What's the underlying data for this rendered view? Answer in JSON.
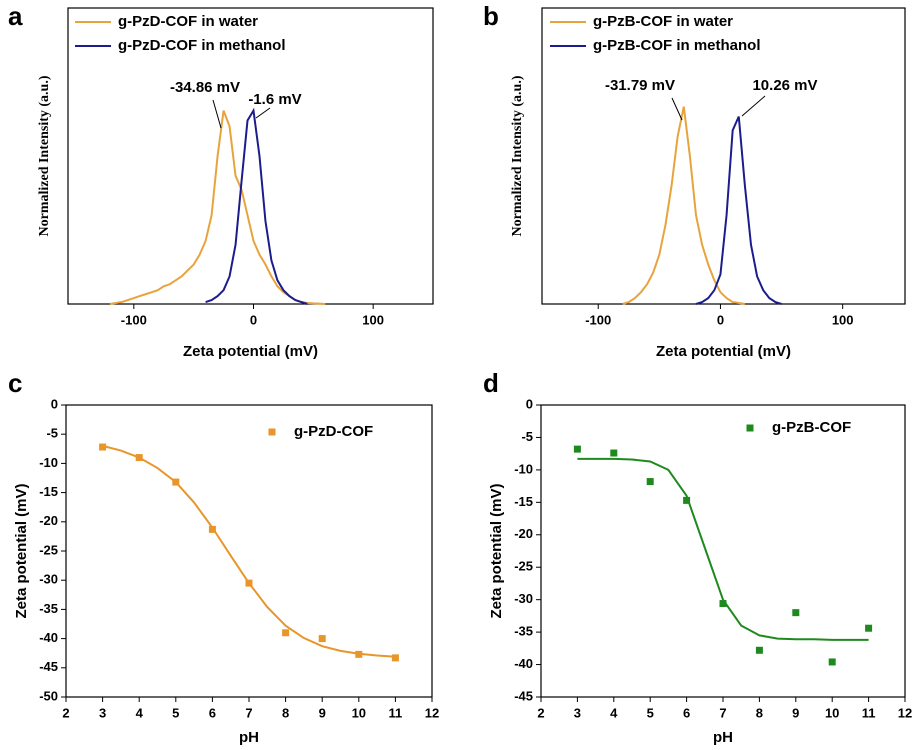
{
  "chart_data": [
    {
      "panel": "a",
      "type": "line",
      "xlabel": "Zeta potential (mV)",
      "ylabel": "Normalized Intensity (a.u.)",
      "xlim": [
        -155,
        150
      ],
      "ylim": [
        0,
        1.5
      ],
      "xticks": [
        -100,
        0,
        100
      ],
      "legend": "upper left",
      "annotations": [
        "-34.86 mV",
        "-1.6 mV"
      ],
      "series": [
        {
          "name": "g-PzD-COF in water",
          "color": "#e8a33c",
          "x": [
            -120,
            -115,
            -110,
            -105,
            -100,
            -95,
            -90,
            -85,
            -80,
            -75,
            -70,
            -65,
            -60,
            -55,
            -50,
            -45,
            -40,
            -35,
            -30,
            -25,
            -20,
            -15,
            -10,
            -5,
            0,
            5,
            10,
            15,
            20,
            25,
            30,
            35,
            40,
            45,
            50,
            55,
            60
          ],
          "values": [
            0,
            0.005,
            0.01,
            0.02,
            0.03,
            0.04,
            0.05,
            0.06,
            0.07,
            0.09,
            0.1,
            0.12,
            0.14,
            0.17,
            0.2,
            0.25,
            0.32,
            0.45,
            0.75,
            0.98,
            0.9,
            0.65,
            0.58,
            0.45,
            0.32,
            0.25,
            0.2,
            0.14,
            0.09,
            0.06,
            0.04,
            0.02,
            0.01,
            0.005,
            0.003,
            0.002,
            0
          ]
        },
        {
          "name": "g-PzD-COF in methanol",
          "color": "#1c1c8c",
          "x": [
            -40,
            -35,
            -30,
            -25,
            -20,
            -15,
            -10,
            -5,
            0,
            5,
            10,
            15,
            20,
            25,
            30,
            35,
            40,
            45
          ],
          "values": [
            0.01,
            0.02,
            0.04,
            0.07,
            0.14,
            0.3,
            0.62,
            0.93,
            0.98,
            0.75,
            0.42,
            0.22,
            0.12,
            0.07,
            0.04,
            0.02,
            0.01,
            0
          ]
        }
      ]
    },
    {
      "panel": "b",
      "type": "line",
      "xlabel": "Zeta potential (mV)",
      "ylabel": "Normalized Intensity (a.u.)",
      "xlim": [
        -146,
        151
      ],
      "ylim": [
        0,
        1.5
      ],
      "xticks": [
        -100,
        0,
        100
      ],
      "legend": "upper left",
      "annotations": [
        "-31.79 mV",
        "10.26 mV"
      ],
      "series": [
        {
          "name": "g-PzB-COF in water",
          "color": "#e8a33c",
          "x": [
            -80,
            -75,
            -70,
            -65,
            -60,
            -55,
            -50,
            -45,
            -40,
            -35,
            -30,
            -25,
            -20,
            -15,
            -10,
            -5,
            0,
            5,
            10,
            15,
            20
          ],
          "values": [
            0,
            0.01,
            0.03,
            0.06,
            0.1,
            0.16,
            0.25,
            0.4,
            0.6,
            0.85,
            1.0,
            0.75,
            0.45,
            0.3,
            0.2,
            0.12,
            0.06,
            0.03,
            0.01,
            0.005,
            0
          ]
        },
        {
          "name": "g-PzB-COF in methanol",
          "color": "#1c1c8c",
          "x": [
            -20,
            -15,
            -10,
            -5,
            0,
            5,
            10,
            15,
            20,
            25,
            30,
            35,
            40,
            45,
            50
          ],
          "values": [
            0,
            0.01,
            0.03,
            0.07,
            0.15,
            0.45,
            0.88,
            0.95,
            0.6,
            0.3,
            0.14,
            0.07,
            0.03,
            0.01,
            0
          ]
        }
      ]
    },
    {
      "panel": "c",
      "type": "scatter",
      "xlabel": "pH",
      "ylabel": "Zeta potential (mV)",
      "xlim": [
        2,
        12
      ],
      "ylim": [
        -50,
        0
      ],
      "xticks": [
        2,
        3,
        4,
        5,
        6,
        7,
        8,
        9,
        10,
        11,
        12
      ],
      "yticks": [
        0,
        -5,
        -10,
        -15,
        -20,
        -25,
        -30,
        -35,
        -40,
        -45,
        -50
      ],
      "legend": "upper right",
      "series": [
        {
          "name": "g-PzD-COF",
          "color": "#e8952a",
          "style": "markers",
          "x": [
            3,
            4,
            5,
            6,
            7,
            8,
            9,
            10,
            11
          ],
          "values": [
            -7.2,
            -9,
            -13.2,
            -21.3,
            -30.5,
            -39,
            -40,
            -42.7,
            -43.3
          ]
        },
        {
          "color": "#e8952a",
          "style": "line",
          "x": [
            3,
            3.5,
            4,
            4.5,
            5,
            5.5,
            6,
            6.5,
            7,
            7.5,
            8,
            8.5,
            9,
            9.5,
            10,
            10.5,
            11
          ],
          "values": [
            -7,
            -7.8,
            -9,
            -10.8,
            -13.2,
            -16.7,
            -21,
            -25.8,
            -30.5,
            -34.6,
            -37.8,
            -39.9,
            -41.3,
            -42.1,
            -42.6,
            -42.9,
            -43.1
          ]
        }
      ]
    },
    {
      "panel": "d",
      "type": "scatter",
      "xlabel": "pH",
      "ylabel": "Zeta potential (mV)",
      "xlim": [
        2,
        12
      ],
      "ylim": [
        -45,
        0
      ],
      "xticks": [
        2,
        3,
        4,
        5,
        6,
        7,
        8,
        9,
        10,
        11,
        12
      ],
      "yticks": [
        0,
        -5,
        -10,
        -15,
        -20,
        -25,
        -30,
        -35,
        -40,
        -45
      ],
      "legend": "upper right",
      "series": [
        {
          "name": "g-PzB-COF",
          "color": "#1e8a1e",
          "style": "markers",
          "x": [
            3,
            4,
            5,
            6,
            7,
            8,
            9,
            10,
            11
          ],
          "values": [
            -6.8,
            -7.4,
            -11.8,
            -14.7,
            -30.6,
            -37.8,
            -32,
            -39.6,
            -34.4
          ]
        },
        {
          "color": "#1e8a1e",
          "style": "line",
          "x": [
            3,
            3.5,
            4,
            4.5,
            5,
            5.5,
            6,
            6.5,
            7,
            7.5,
            8,
            8.5,
            9,
            9.5,
            10,
            10.5,
            11
          ],
          "values": [
            -8.3,
            -8.3,
            -8.3,
            -8.4,
            -8.7,
            -10,
            -14,
            -22,
            -30,
            -34,
            -35.5,
            -36,
            -36.1,
            -36.1,
            -36.2,
            -36.2,
            -36.2
          ]
        }
      ]
    }
  ]
}
